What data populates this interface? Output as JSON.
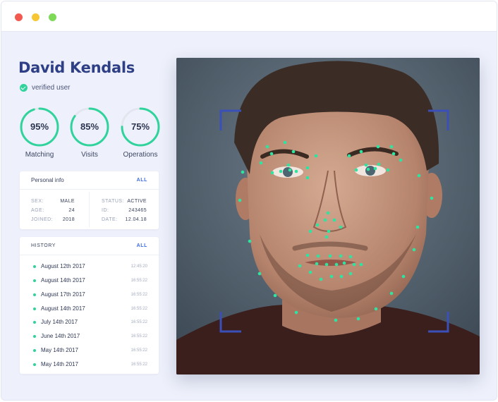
{
  "window": {
    "controls": [
      "close",
      "minimize",
      "maximize"
    ]
  },
  "profile": {
    "name": "David Kendals",
    "status": "verified user",
    "status_icon": "check-circle-icon",
    "accent": "#2fd39b"
  },
  "stats": [
    {
      "value": "95%",
      "label": "Matching",
      "percent": 95
    },
    {
      "value": "85%",
      "label": "Visits",
      "percent": 85
    },
    {
      "value": "75%",
      "label": "Operations",
      "percent": 75
    }
  ],
  "personal_info": {
    "title": "Personal info",
    "link": "ALL",
    "left": [
      {
        "key": "SEX:",
        "value": "MALE"
      },
      {
        "key": "AGE:",
        "value": "24"
      },
      {
        "key": "JOINED:",
        "value": "2018"
      }
    ],
    "right": [
      {
        "key": "STATUS:",
        "value": "ACTIVE"
      },
      {
        "key": "ID:",
        "value": "243465"
      },
      {
        "key": "DATE:",
        "value": "12.04.18"
      }
    ]
  },
  "history": {
    "title": "HISTORY",
    "link": "ALL",
    "items": [
      {
        "date": "August 12th 2017",
        "time": "12:45:20"
      },
      {
        "date": "August 14th 2017",
        "time": "16:55:22"
      },
      {
        "date": "August 17th 2017",
        "time": "16:55:22"
      },
      {
        "date": "August 14th 2017",
        "time": "16:55:22"
      },
      {
        "date": "July 14th 2017",
        "time": "16:55:22"
      },
      {
        "date": "June 14th 2017",
        "time": "16:55:22"
      },
      {
        "date": "May 14th 2017",
        "time": "16:55:22"
      },
      {
        "date": "May 14th 2017",
        "time": "16:55:22"
      }
    ]
  },
  "scan": {
    "corner_color": "#3b4fb8",
    "landmark_color": "#2fe3a0"
  }
}
